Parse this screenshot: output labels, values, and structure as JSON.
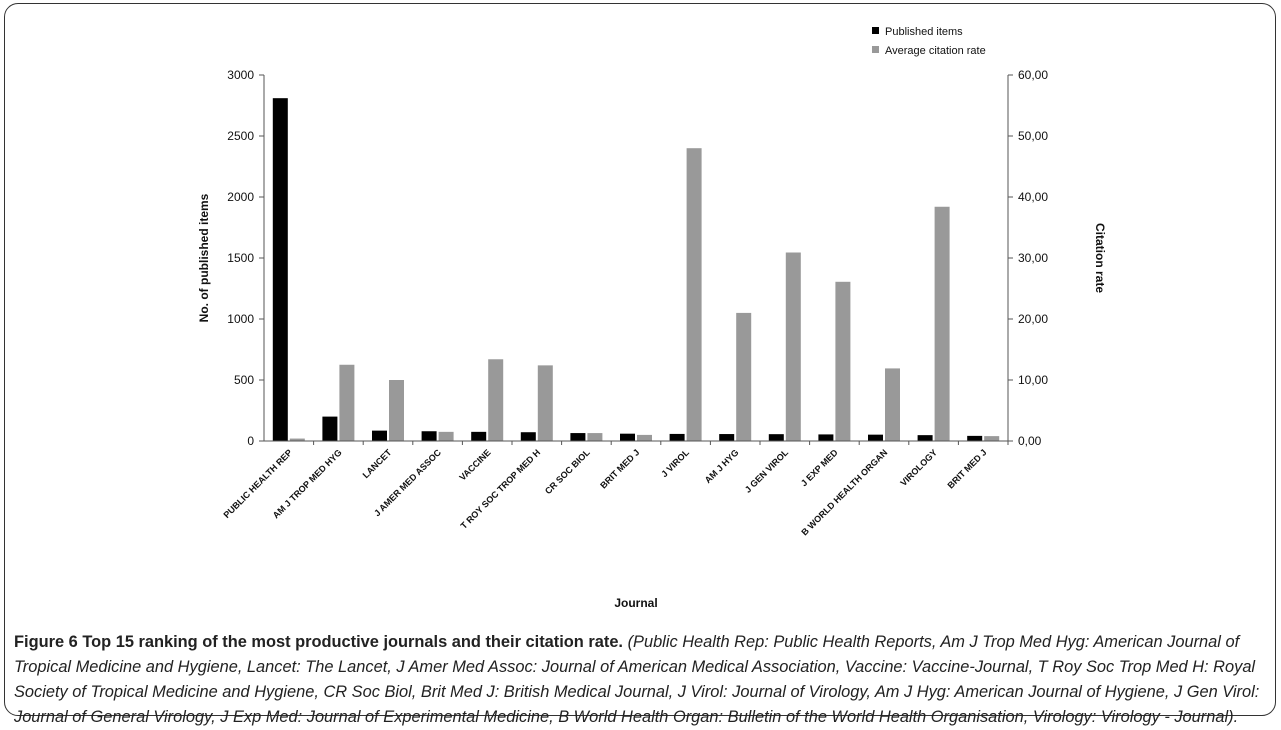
{
  "chart_data": {
    "type": "bar",
    "title": "",
    "xlabel": "Journal",
    "ylabel": "No. of published items",
    "y2label": "Citation rate",
    "ylim": [
      0,
      3000
    ],
    "y2lim": [
      0,
      60
    ],
    "yticks": [
      "0",
      "500",
      "1000",
      "1500",
      "2000",
      "2500",
      "3000"
    ],
    "y2ticks": [
      "0,00",
      "10,00",
      "20,00",
      "30,00",
      "40,00",
      "50,00",
      "60,00"
    ],
    "legend_position": "top-right",
    "categories": [
      "PUBLIC HEALTH REP",
      "AM J TROP MED HYG",
      "LANCET",
      "J AMER MED ASSOC",
      "VACCINE",
      "T ROY SOC TROP MED H",
      "CR SOC BIOL",
      "BRIT MED J",
      "J VIROL",
      "AM J HYG",
      "J GEN VIROL",
      "J EXP MED",
      "B WORLD HEALTH ORGAN",
      "VIROLOGY",
      "BRIT MED J"
    ],
    "series": [
      {
        "name": "Published items",
        "axis": "left",
        "color": "#000000",
        "values": [
          2810,
          200,
          85,
          80,
          75,
          72,
          65,
          60,
          58,
          57,
          56,
          54,
          52,
          48,
          42
        ]
      },
      {
        "name": "Average citation rate",
        "axis": "right",
        "color": "#999999",
        "values": [
          0.4,
          12.5,
          10.0,
          1.5,
          13.4,
          12.4,
          1.3,
          1.0,
          48.0,
          21.0,
          30.9,
          26.1,
          11.9,
          38.4,
          0.8
        ]
      }
    ]
  },
  "caption": {
    "label": "Figure 6",
    "title": "Top 15 ranking of the most productive journals and their citation rate.",
    "text": "(Public Health Rep: Public Health Reports, Am J Trop Med Hyg: American Journal of Tropical Medicine and Hygiene, Lancet: The Lancet, J Amer Med Assoc: Journal of American Medical Association, Vaccine: Vaccine-Journal, T Roy Soc Trop Med H: Royal Society of Tropical Medicine and Hygiene, CR Soc Biol, Brit Med J: British Medical Journal, J Virol: Journal of Virology, Am J Hyg: American Journal of Hygiene, J Gen Virol: Journal of General Virology, J Exp Med: Journal of Experimental Medicine, B World Health Organ: Bulletin of the World Health Organisation, Virology: Virology - Journal)."
  }
}
